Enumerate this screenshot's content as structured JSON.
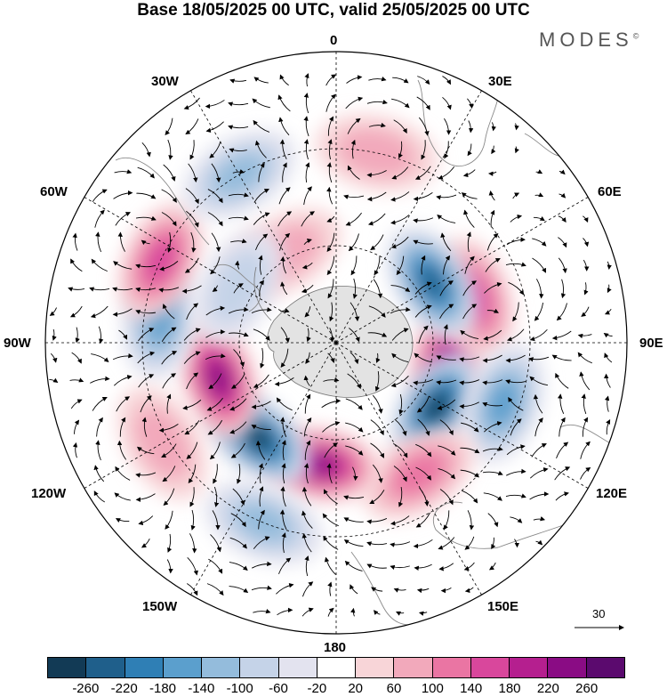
{
  "header": {
    "title": "Base 18/05/2025 00 UTC, valid 25/05/2025 00 UTC"
  },
  "brand": {
    "name": "MODES",
    "mark": "©"
  },
  "meridian_labels": {
    "m0": "0",
    "m30e": "30E",
    "m60e": "60E",
    "m90e": "90E",
    "m120e": "120E",
    "m150e": "150E",
    "m180": "180",
    "m150w": "150W",
    "m120w": "120W",
    "m90w": "90W",
    "m60w": "60W",
    "m30w": "30W"
  },
  "reference_vector": {
    "label": "30"
  },
  "colorbar": {
    "ticks": [
      "-260",
      "-220",
      "-180",
      "-140",
      "-100",
      "-60",
      "-20",
      "20",
      "60",
      "100",
      "140",
      "180",
      "220",
      "260"
    ],
    "colors": [
      "#123a55",
      "#1f5f8b",
      "#2f7fb5",
      "#5b9fcd",
      "#94bcdc",
      "#c5d3e8",
      "#e3e3ef",
      "#ffffff",
      "#f8d5d8",
      "#f2a9bb",
      "#ea75a3",
      "#d9479c",
      "#b51f8f",
      "#8a0c84",
      "#5b0a6e"
    ]
  },
  "anomalies": [
    {
      "sign": "pos",
      "level": 6,
      "lon": 100,
      "lat": -55
    },
    {
      "sign": "pos",
      "level": 4,
      "lon": 72,
      "lat": -45
    },
    {
      "sign": "neg",
      "level": 6,
      "lon": 58,
      "lat": -55
    },
    {
      "sign": "neg",
      "level": 7,
      "lon": 123,
      "lat": -53
    },
    {
      "sign": "neg",
      "level": 4,
      "lon": 110,
      "lat": -35
    },
    {
      "sign": "pos",
      "level": 3,
      "lon": 148,
      "lat": -42
    },
    {
      "sign": "pos",
      "level": 6,
      "lon": -172,
      "lat": -52
    },
    {
      "sign": "neg",
      "level": 7,
      "lon": -140,
      "lat": -52
    },
    {
      "sign": "pos",
      "level": 6,
      "lon": -107,
      "lat": -52
    },
    {
      "sign": "neg",
      "level": 4,
      "lon": -82,
      "lat": -35
    },
    {
      "sign": "pos",
      "level": 4,
      "lon": -65,
      "lat": -30
    },
    {
      "sign": "neg",
      "level": 3,
      "lon": -30,
      "lat": -30
    },
    {
      "sign": "pos",
      "level": 2,
      "lon": 12,
      "lat": -30
    },
    {
      "sign": "pos",
      "level": 2,
      "lon": -30,
      "lat": -58
    },
    {
      "sign": "neg",
      "level": 2,
      "lon": -60,
      "lat": -55
    },
    {
      "sign": "neg",
      "level": 3,
      "lon": -158,
      "lat": -30
    },
    {
      "sign": "pos",
      "level": 2,
      "lon": -120,
      "lat": -28
    }
  ]
}
